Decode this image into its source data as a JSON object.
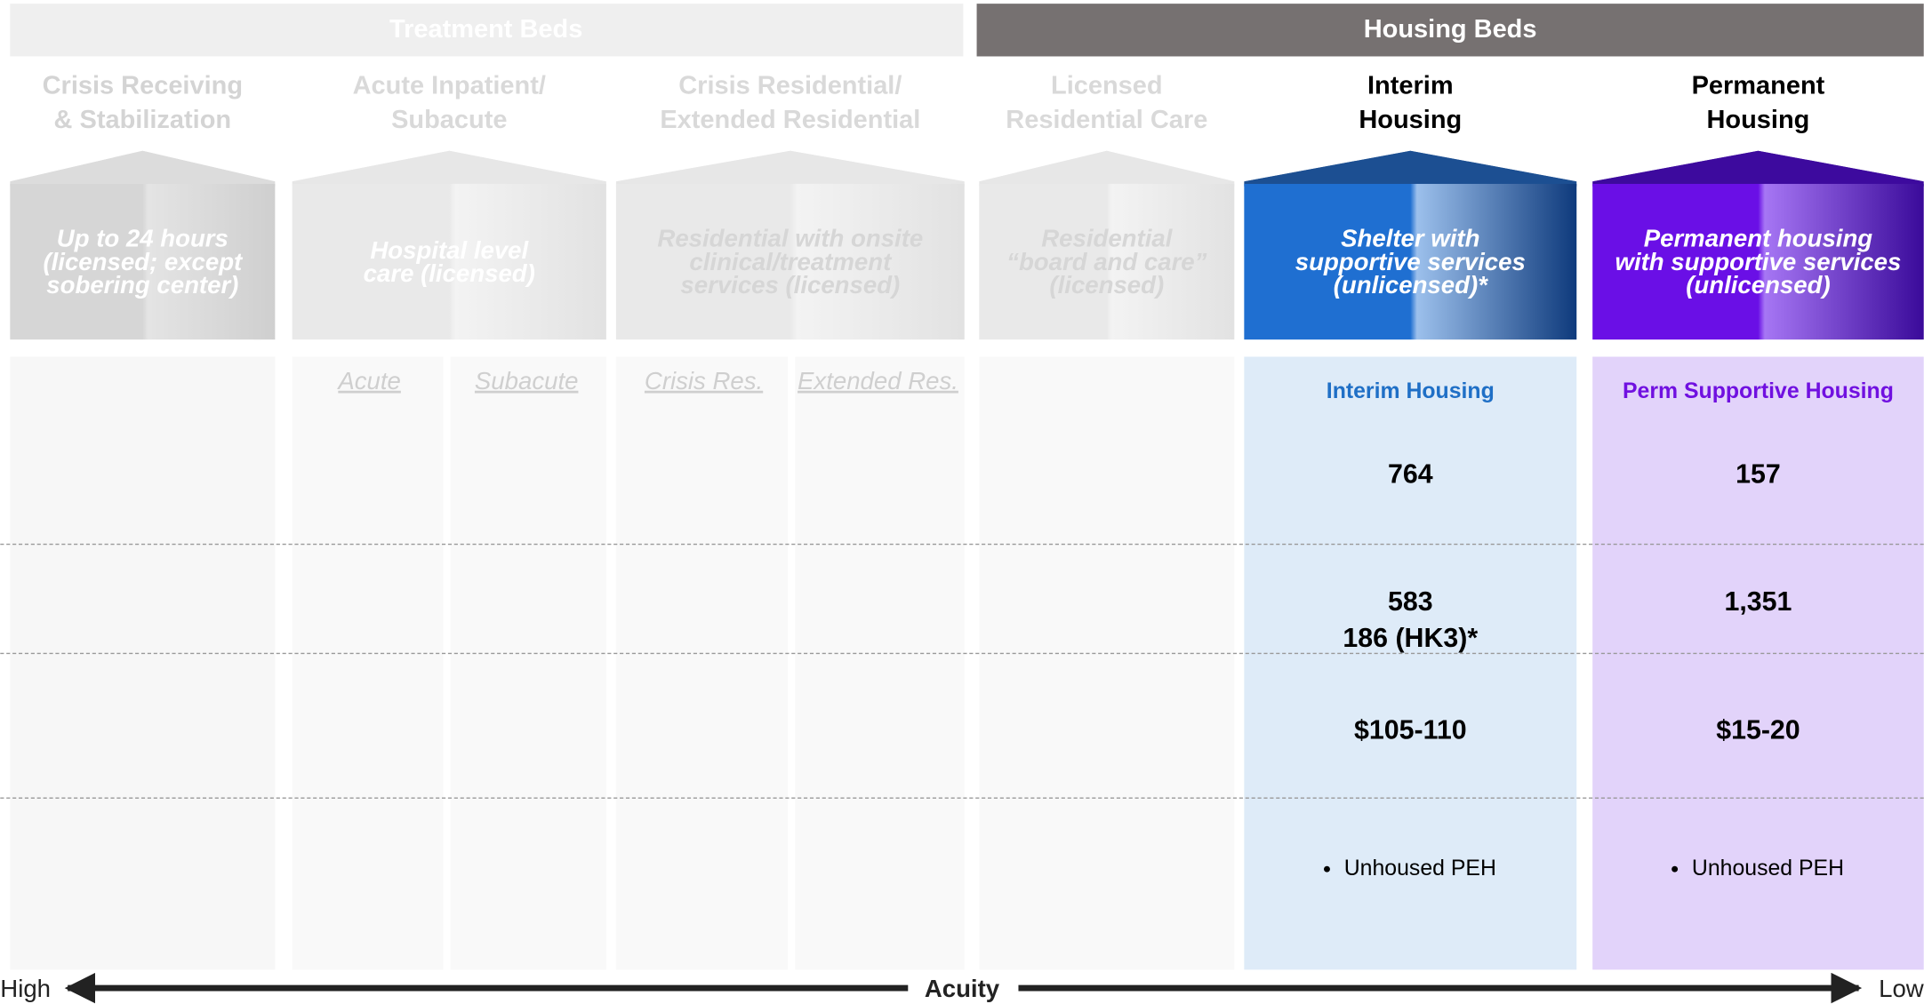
{
  "header": {
    "treatment_beds": "Treatment Beds",
    "housing_beds": "Housing Beds"
  },
  "columns": [
    {
      "title": [
        "Crisis Receiving",
        "& Stabilization"
      ],
      "description": [
        "Up to 24 hours",
        "(licensed; except",
        "sobering center)"
      ]
    },
    {
      "title": [
        "Acute Inpatient/",
        "Subacute"
      ],
      "description": [
        "Hospital level",
        "care (licensed)"
      ],
      "sublabels": [
        "Acute",
        "Subacute"
      ]
    },
    {
      "title": [
        "Crisis Residential/",
        "Extended Residential"
      ],
      "description": [
        "Residential with onsite",
        "clinical/treatment",
        "services (licensed)"
      ],
      "sublabels": [
        "Crisis Res.",
        "Extended Res."
      ]
    },
    {
      "title": [
        "Licensed",
        "Residential Care"
      ],
      "description": [
        "Residential",
        "“board and care”",
        "(licensed)"
      ]
    },
    {
      "title": [
        "Interim",
        "Housing"
      ],
      "description": [
        "Shelter with",
        "supportive services",
        "(unlicensed)*"
      ],
      "label": "Interim Housing",
      "rows": [
        [
          "764"
        ],
        [
          "583",
          "186 (HK3)*"
        ],
        [
          "$105-110"
        ]
      ],
      "population": "Unhoused PEH"
    },
    {
      "title": [
        "Permanent",
        "Housing"
      ],
      "description": [
        "Permanent housing",
        "with supportive services",
        "(unlicensed)"
      ],
      "label": "Perm Supportive Housing",
      "rows": [
        [
          "157"
        ],
        [
          "1,351"
        ],
        [
          "$15-20"
        ]
      ],
      "population": "Unhoused PEH"
    }
  ],
  "axis": {
    "left": "High",
    "center": "Acuity",
    "right": "Low"
  }
}
